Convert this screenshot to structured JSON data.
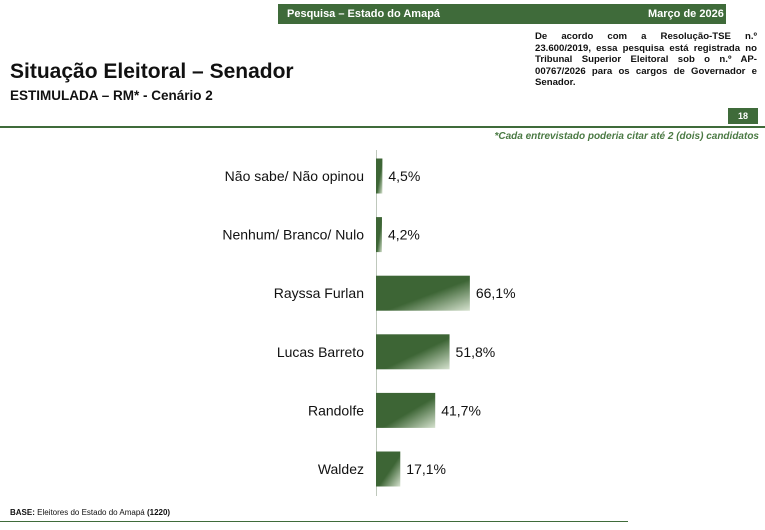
{
  "header": {
    "survey_label": "Pesquisa – Estado do Amapá",
    "date_label": "Março de 2026",
    "legal_text": "De acordo com a Resolução-TSE n.º 23.600/2019, essa pesquisa está registrada no Tribunal Superior Eleitoral sob o n.º AP-00767/2026 para os cargos de Governador e Senador.",
    "page_number": "18",
    "note": "*Cada entrevistado poderia citar até 2 (dois) candidatos"
  },
  "colors": {
    "accent": "#3f6b3a",
    "bar_dark": "#3d6535",
    "bar_light": "#d6e2cf"
  },
  "chart_data": {
    "type": "bar",
    "orientation": "horizontal",
    "title": "Situação Eleitoral – Senador",
    "subtitle": "ESTIMULADA – RM* - Cenário 2",
    "categories": [
      "Não sabe/ Não opinou",
      "Nenhum/ Branco/ Nulo",
      "Rayssa Furlan",
      "Lucas Barreto",
      "Randolfe",
      "Waldez"
    ],
    "values": [
      4.5,
      4.2,
      66.1,
      51.8,
      41.7,
      17.1
    ],
    "value_labels": [
      "4,5%",
      "4,2%",
      "66,1%",
      "51,8%",
      "41,7%",
      "17,1%"
    ],
    "xlabel": "",
    "ylabel": "",
    "xlim": [
      0,
      100
    ],
    "grid": false,
    "legend": "none"
  },
  "footer": {
    "base_label": "BASE:",
    "base_text": " Eleitores do Estado do Amapá ",
    "base_count": "(1220)"
  }
}
